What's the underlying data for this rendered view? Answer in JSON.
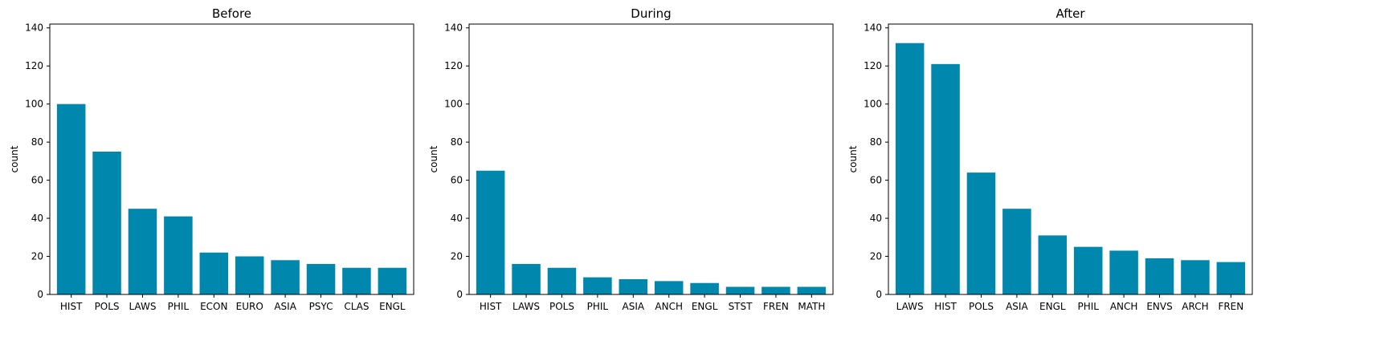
{
  "chart_data": [
    {
      "type": "bar",
      "title": "Before",
      "xlabel": "",
      "ylabel": "count",
      "ylim": [
        0,
        142
      ],
      "yticks": [
        0,
        20,
        40,
        60,
        80,
        100,
        120,
        140
      ],
      "categories": [
        "HIST",
        "POLS",
        "LAWS",
        "PHIL",
        "ECON",
        "EURO",
        "ASIA",
        "PSYC",
        "CLAS",
        "ENGL"
      ],
      "values": [
        100,
        75,
        45,
        41,
        22,
        20,
        18,
        16,
        14,
        14
      ],
      "grid": false,
      "color": "#0087ad"
    },
    {
      "type": "bar",
      "title": "During",
      "xlabel": "",
      "ylabel": "count",
      "ylim": [
        0,
        142
      ],
      "yticks": [
        0,
        20,
        40,
        60,
        80,
        100,
        120,
        140
      ],
      "categories": [
        "HIST",
        "LAWS",
        "POLS",
        "PHIL",
        "ASIA",
        "ANCH",
        "ENGL",
        "STST",
        "FREN",
        "MATH"
      ],
      "values": [
        65,
        16,
        14,
        9,
        8,
        7,
        6,
        4,
        4,
        4
      ],
      "grid": false,
      "color": "#0087ad"
    },
    {
      "type": "bar",
      "title": "After",
      "xlabel": "",
      "ylabel": "count",
      "ylim": [
        0,
        142
      ],
      "yticks": [
        0,
        20,
        40,
        60,
        80,
        100,
        120,
        140
      ],
      "categories": [
        "LAWS",
        "HIST",
        "POLS",
        "ASIA",
        "ENGL",
        "PHIL",
        "ANCH",
        "ENVS",
        "ARCH",
        "FREN"
      ],
      "values": [
        132,
        121,
        64,
        45,
        31,
        25,
        23,
        19,
        18,
        17
      ],
      "grid": false,
      "color": "#0087ad"
    }
  ]
}
